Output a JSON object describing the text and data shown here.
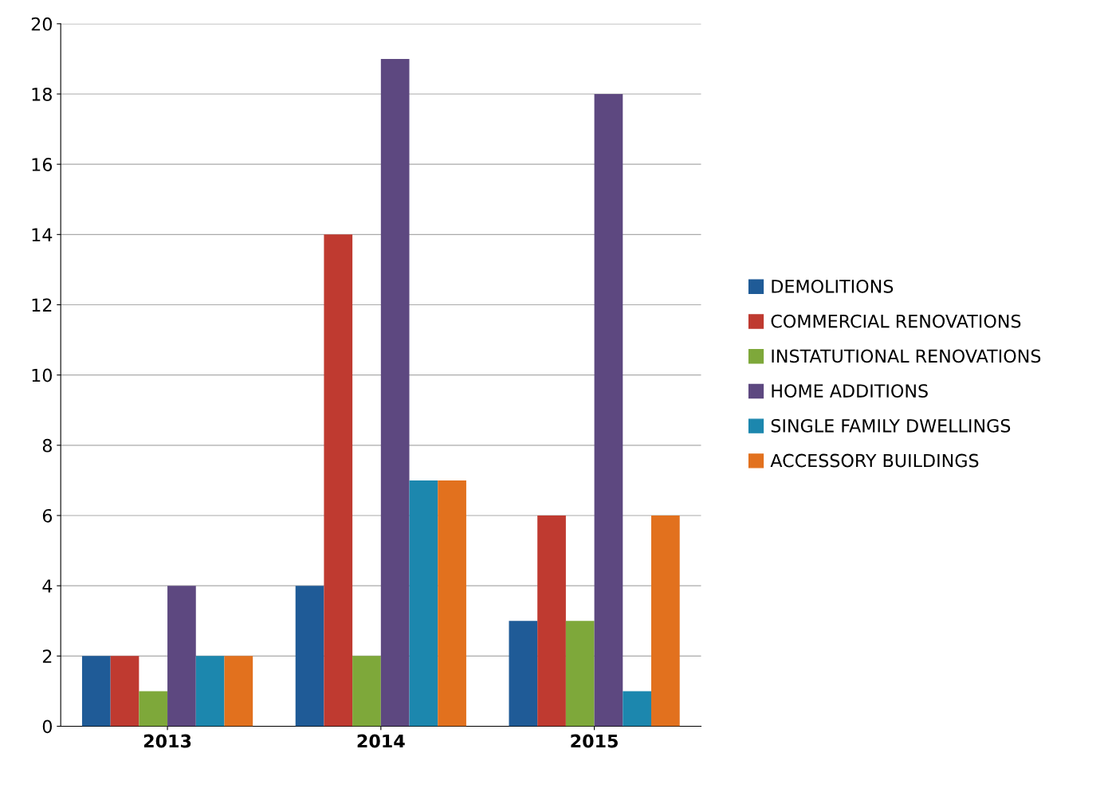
{
  "chart_data": {
    "type": "bar",
    "categories": [
      "2013",
      "2014",
      "2015"
    ],
    "series": [
      {
        "name": "DEMOLITIONS",
        "color": "#1f5b97",
        "values": [
          2,
          4,
          3
        ]
      },
      {
        "name": "COMMERCIAL RENOVATIONS",
        "color": "#bf3a30",
        "values": [
          2,
          14,
          6
        ]
      },
      {
        "name": "INSTATUTIONAL RENOVATIONS",
        "color": "#7ea83a",
        "values": [
          1,
          2,
          3
        ]
      },
      {
        "name": "HOME ADDITIONS",
        "color": "#5d4880",
        "values": [
          4,
          19,
          18
        ]
      },
      {
        "name": "SINGLE FAMILY DWELLINGS",
        "color": "#1c87ae",
        "values": [
          2,
          7,
          1
        ]
      },
      {
        "name": "ACCESSORY BUILDINGS",
        "color": "#e2711e",
        "values": [
          2,
          7,
          6
        ]
      }
    ],
    "ylim": [
      0,
      20
    ],
    "yticks": [
      0,
      2,
      4,
      6,
      8,
      10,
      12,
      14,
      16,
      18,
      20
    ],
    "grid": "y",
    "legend": "right"
  }
}
